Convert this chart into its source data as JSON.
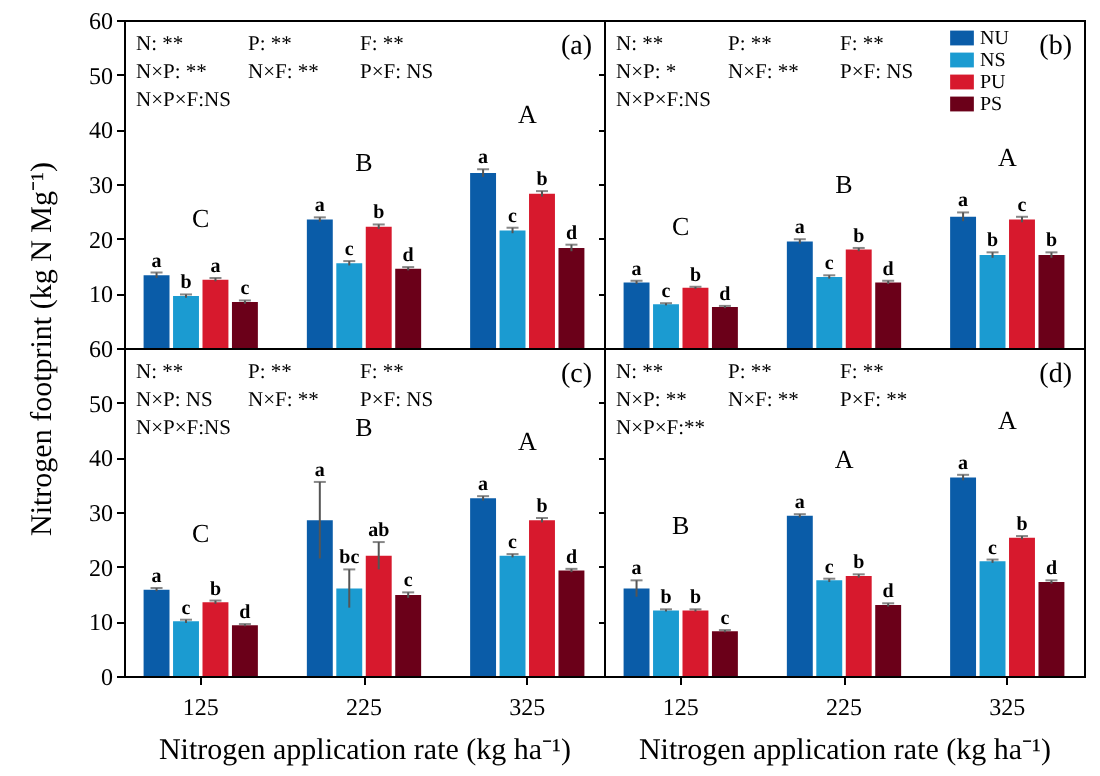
{
  "chart_data": [
    {
      "type": "bar",
      "title": "(a)",
      "ylabel": "Nitrogen footprint (kg N Mg⁻¹)",
      "categories": [
        "125",
        "225",
        "325"
      ],
      "ylim": [
        0,
        60
      ],
      "yticks": [
        {
          "value": 0,
          "label": null
        },
        10,
        20,
        30,
        40,
        50,
        60
      ],
      "tick_labels": "y",
      "series": [
        {
          "color": "#0a5ca8",
          "values": [
            13.3,
            23.5,
            32
          ],
          "errors": [
            0.5,
            0.4,
            0.7
          ],
          "value_labels": [
            "a",
            "a",
            "a"
          ]
        },
        {
          "color": "#1b9bd1",
          "values": [
            9.5,
            15.5,
            21.5
          ],
          "errors": [
            0.3,
            0.4,
            0.5
          ],
          "value_labels": [
            "b",
            "c",
            "c"
          ]
        },
        {
          "color": "#d7192d",
          "values": [
            12.5,
            22.2,
            28.2
          ],
          "errors": [
            0.3,
            0.4,
            0.5
          ],
          "value_labels": [
            "a",
            "b",
            "b"
          ]
        },
        {
          "color": "#6b0019",
          "values": [
            8.4,
            14.5,
            18.3
          ],
          "errors": [
            0.3,
            0.3,
            0.6
          ],
          "value_labels": [
            "c",
            "d",
            "d"
          ]
        }
      ],
      "annotations": [
        "N: **",
        "P: **",
        "F: **",
        "N×P: **",
        "N×F: **",
        "P×F: NS",
        "N×P×F:NS",
        "C",
        "B",
        "A"
      ]
    },
    {
      "type": "bar",
      "title": "(b)",
      "categories": [
        "125",
        "225",
        "325"
      ],
      "ylim": [
        0,
        60
      ],
      "yticks": [
        {
          "value": 0,
          "label": null
        },
        10,
        20,
        30,
        40,
        50,
        60
      ],
      "tick_labels": false,
      "legend": "top right",
      "series": [
        {
          "name": "NU",
          "color": "#0a5ca8",
          "values": [
            12,
            19.5,
            24
          ],
          "errors": [
            0.3,
            0.4,
            0.8
          ],
          "value_labels": [
            "a",
            "a",
            "a"
          ]
        },
        {
          "name": "NS",
          "color": "#1b9bd1",
          "values": [
            8,
            13,
            17
          ],
          "errors": [
            0.2,
            0.3,
            0.5
          ],
          "value_labels": [
            "c",
            "c",
            "b"
          ]
        },
        {
          "name": "PU",
          "color": "#d7192d",
          "values": [
            11,
            18,
            23.5
          ],
          "errors": [
            0.2,
            0.3,
            0.5
          ],
          "value_labels": [
            "b",
            "b",
            "c"
          ]
        },
        {
          "name": "PS",
          "color": "#6b0019",
          "values": [
            7.5,
            12,
            17
          ],
          "errors": [
            0.2,
            0.3,
            0.5
          ],
          "value_labels": [
            "d",
            "d",
            "b"
          ]
        }
      ],
      "annotations": [
        "N: **",
        "P: **",
        "F: **",
        "N×P: *",
        "N×F: **",
        "P×F: NS",
        "N×P×F:NS",
        "C",
        "B",
        "A"
      ]
    },
    {
      "type": "bar",
      "title": "(c)",
      "xlabel": "Nitrogen application rate (kg ha⁻¹)",
      "categories": [
        "125",
        "225",
        "325"
      ],
      "ylim": [
        0,
        60
      ],
      "yticks": [
        0,
        10,
        20,
        30,
        40,
        50,
        60
      ],
      "series": [
        {
          "color": "#0a5ca8",
          "values": [
            15.8,
            28.5,
            32.5
          ],
          "errors": [
            0.3,
            7,
            0.4
          ],
          "value_labels": [
            "a",
            "a",
            "a"
          ]
        },
        {
          "color": "#1b9bd1",
          "values": [
            10,
            16,
            22
          ],
          "errors": [
            0.3,
            3.5,
            0.3
          ],
          "value_labels": [
            "c",
            "bc",
            "c"
          ]
        },
        {
          "color": "#d7192d",
          "values": [
            13.5,
            22,
            28.5
          ],
          "errors": [
            0.3,
            2.5,
            0.4
          ],
          "value_labels": [
            "b",
            "ab",
            "b"
          ]
        },
        {
          "color": "#6b0019",
          "values": [
            9.3,
            14.8,
            19.3
          ],
          "errors": [
            0.2,
            0.5,
            0.3
          ],
          "value_labels": [
            "d",
            "c",
            "d"
          ]
        }
      ],
      "annotations": [
        "N: **",
        "P: **",
        "F: **",
        "N×P: NS",
        "N×F: **",
        "P×F: NS",
        "N×P×F:NS",
        "C",
        "B",
        "A"
      ]
    },
    {
      "type": "bar",
      "title": "(d)",
      "xlabel": "Nitrogen application rate (kg ha⁻¹)",
      "categories": [
        "125",
        "225",
        "325"
      ],
      "ylim": [
        0,
        60
      ],
      "yticks": [
        0,
        10,
        20,
        30,
        40,
        50,
        60
      ],
      "tick_labels": "x",
      "series": [
        {
          "color": "#0a5ca8",
          "values": [
            16,
            29.3,
            36.3
          ],
          "errors": [
            1.5,
            0.3,
            0.5
          ],
          "value_labels": [
            "a",
            "a",
            "a"
          ]
        },
        {
          "color": "#1b9bd1",
          "values": [
            12,
            17.5,
            21
          ],
          "errors": [
            0.2,
            0.3,
            0.3
          ],
          "value_labels": [
            "b",
            "c",
            "c"
          ]
        },
        {
          "color": "#d7192d",
          "values": [
            12,
            18.3,
            25.3
          ],
          "errors": [
            0.2,
            0.3,
            0.3
          ],
          "value_labels": [
            "b",
            "b",
            "b"
          ]
        },
        {
          "color": "#6b0019",
          "values": [
            8.2,
            13,
            17.2
          ],
          "errors": [
            0.2,
            0.3,
            0.3
          ],
          "value_labels": [
            "c",
            "d",
            "d"
          ]
        }
      ],
      "annotations": [
        "N: **",
        "P: **",
        "F: **",
        "N×P: **",
        "N×F: **",
        "P×F: **",
        "N×P×F:**",
        "B",
        "A",
        "A"
      ]
    }
  ]
}
